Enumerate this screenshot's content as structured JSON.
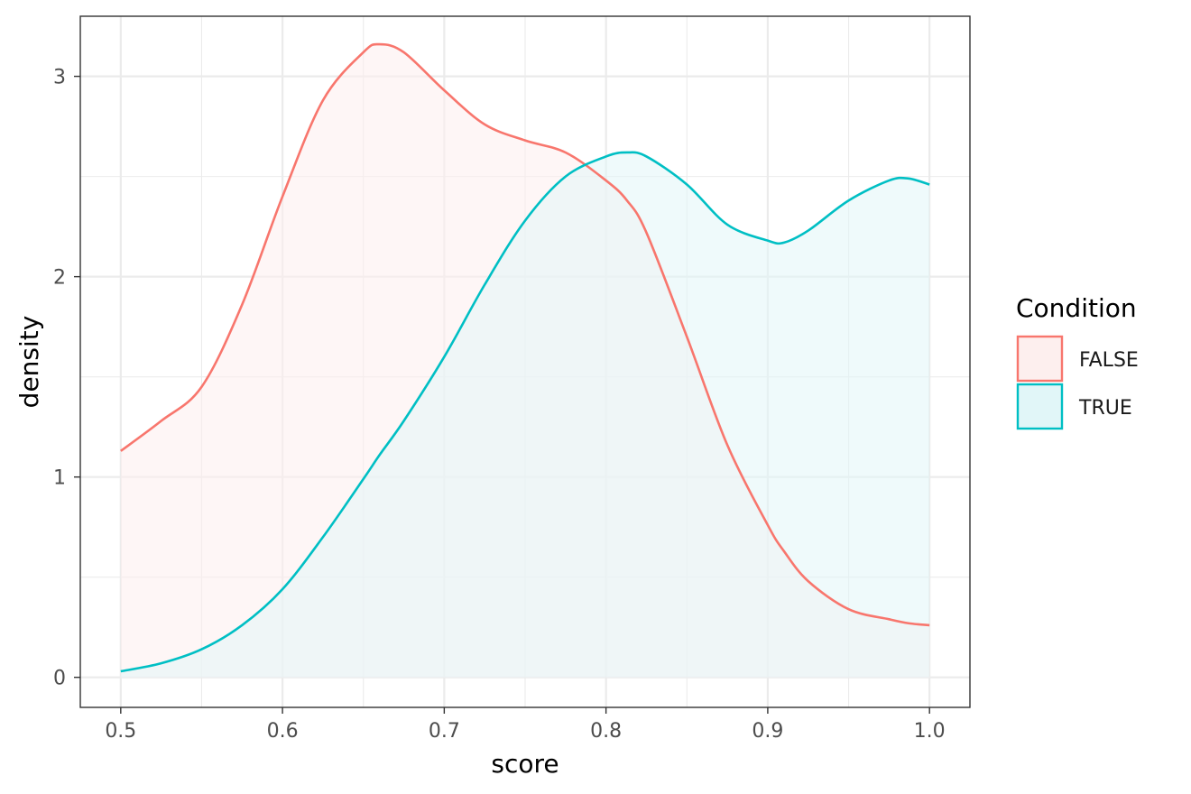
{
  "chart_data": {
    "type": "area",
    "chart_kind": "density",
    "xlabel": "score",
    "ylabel": "density",
    "xlim": [
      0.475,
      1.025
    ],
    "ylim": [
      -0.15,
      3.3
    ],
    "x_ticks": [
      0.5,
      0.6,
      0.7,
      0.8,
      0.9,
      1.0
    ],
    "x_tick_labels": [
      "0.5",
      "0.6",
      "0.7",
      "0.8",
      "0.9",
      "1.0"
    ],
    "y_ticks": [
      0,
      1,
      2,
      3
    ],
    "y_tick_labels": [
      "0",
      "1",
      "2",
      "3"
    ],
    "grid": true,
    "legend": {
      "title": "Condition",
      "placement": "right",
      "entries": [
        "FALSE",
        "TRUE"
      ]
    },
    "x": [
      0.5,
      0.525,
      0.55,
      0.575,
      0.6,
      0.625,
      0.65,
      0.66,
      0.675,
      0.7,
      0.725,
      0.75,
      0.775,
      0.8,
      0.813,
      0.825,
      0.85,
      0.875,
      0.9,
      0.91,
      0.925,
      0.95,
      0.975,
      0.987,
      1.0
    ],
    "series": [
      {
        "name": "FALSE",
        "color": "#F8766D",
        "fill": "#FDEFEE",
        "values": [
          1.13,
          1.28,
          1.45,
          1.86,
          2.4,
          2.88,
          3.12,
          3.16,
          3.12,
          2.93,
          2.76,
          2.68,
          2.62,
          2.48,
          2.38,
          2.22,
          1.7,
          1.16,
          0.76,
          0.63,
          0.48,
          0.34,
          0.29,
          0.27,
          0.26
        ]
      },
      {
        "name": "TRUE",
        "color": "#00BFC4",
        "fill": "#E1F6F8",
        "values": [
          0.03,
          0.07,
          0.14,
          0.26,
          0.44,
          0.7,
          0.99,
          1.11,
          1.28,
          1.6,
          1.96,
          2.28,
          2.5,
          2.6,
          2.62,
          2.6,
          2.46,
          2.26,
          2.18,
          2.17,
          2.23,
          2.38,
          2.48,
          2.49,
          2.46
        ]
      }
    ]
  }
}
